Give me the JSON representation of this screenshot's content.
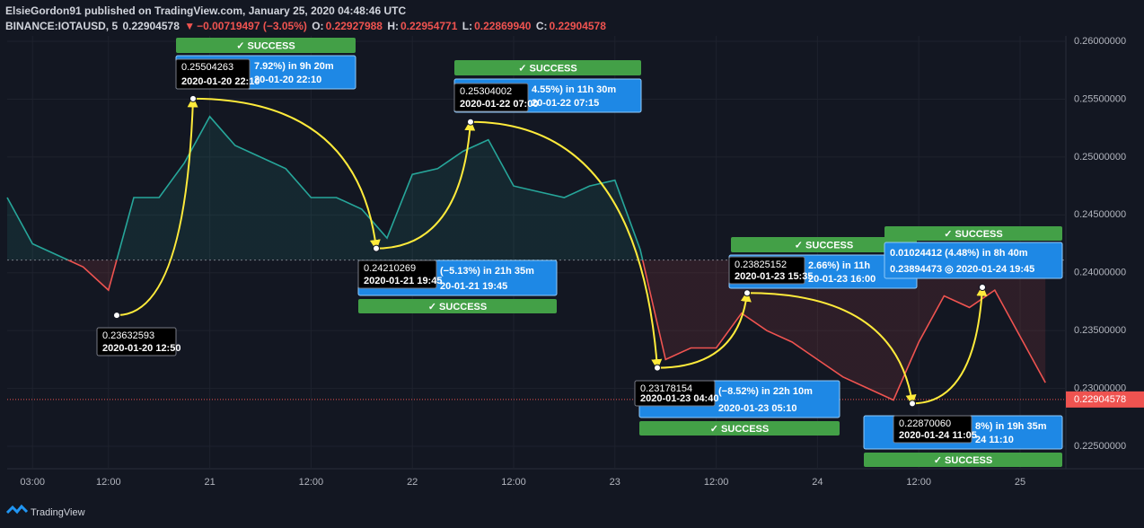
{
  "header": {
    "publisher": "ElsieGordon91 published on TradingView.com, January 25, 2020 04:48:46 UTC",
    "symbol": "BINANCE:IOTAUSD, 5",
    "price": "0.22904578",
    "arrow": "▼",
    "change": "−0.00719497 (−3.05%)",
    "o_label": "O:",
    "o": "0.22927988",
    "h_label": "H:",
    "h": "0.22954771",
    "l_label": "L:",
    "l": "0.22869940",
    "c_label": "C:",
    "c": "0.22904578"
  },
  "footer": {
    "brand": "TradingView"
  },
  "chart_data": {
    "type": "line",
    "up_color": "#26a69a",
    "down_color": "#ef5350",
    "baseline": 0.2411,
    "categories": [
      null,
      "03:00",
      null,
      null,
      "12:00",
      null,
      null,
      null,
      "21",
      null,
      null,
      null,
      "12:00",
      null,
      null,
      null,
      "22",
      null,
      null,
      null,
      "12:00",
      null,
      null,
      null,
      "23",
      null,
      null,
      null,
      "12:00",
      null,
      null,
      null,
      "24",
      null,
      null,
      null,
      "12:00",
      null,
      null,
      null,
      "25",
      null
    ],
    "values": [
      0.2465,
      0.2425,
      0.2415,
      0.2405,
      0.2385,
      0.2465,
      0.2465,
      0.2495,
      0.2535,
      0.251,
      0.25,
      0.249,
      0.2465,
      0.2465,
      0.2455,
      0.243,
      0.2485,
      0.249,
      0.2505,
      0.2515,
      0.2475,
      0.247,
      0.2465,
      0.2475,
      0.248,
      0.242,
      0.2325,
      0.2335,
      0.2335,
      0.2365,
      0.235,
      0.234,
      0.2325,
      0.231,
      0.23,
      0.229,
      0.234,
      0.238,
      0.237,
      0.2385,
      0.2345,
      0.2305
    ],
    "ylim": [
      0.22306,
      0.26047
    ],
    "yticks": [
      {
        "value": 0.225,
        "label": "0.22500000"
      },
      {
        "value": 0.23,
        "label": "0.23000000"
      },
      {
        "value": 0.235,
        "label": "0.23500000"
      },
      {
        "value": 0.24,
        "label": "0.24000000"
      },
      {
        "value": 0.245,
        "label": "0.24500000"
      },
      {
        "value": 0.25,
        "label": "0.25000000"
      },
      {
        "value": 0.255,
        "label": "0.25500000"
      },
      {
        "value": 0.26,
        "label": "0.26000000"
      }
    ],
    "last_price": 0.22904578,
    "annotations": [
      {
        "price": 0.23632593,
        "time": "2020-01-20 12:50"
      },
      {
        "price": 0.25504263,
        "time": "2020-01-20 22:10",
        "info": "7.92%) in 9h 20m",
        "info_time": "20-01-20  22:10",
        "status": "✓ SUCCESS"
      },
      {
        "price": 0.24210269,
        "time": "2020-01-21 19:45",
        "info": "(−5.13%) in 21h 35m",
        "info_time": "20-01-21  19:45",
        "status": "✓ SUCCESS"
      },
      {
        "price": 0.25304002,
        "time": "2020-01-22 07:00",
        "info": "4.55%) in 11h 30m",
        "info_time": "20-01-22  07:15",
        "status": "✓ SUCCESS"
      },
      {
        "price": 0.23178154,
        "time": "2020-01-23 04:40",
        "info": "(−8.52%) in 22h 10m",
        "info_time": "2020-01-23  05:10",
        "status": "✓ SUCCESS"
      },
      {
        "price": 0.23825152,
        "time": "2020-01-23 15:35",
        "info": "2.66%) in 11h",
        "info_time": "20-01-23  16:00",
        "status": "✓ SUCCESS"
      },
      {
        "price": {
          "value": 0.2287006,
          "label": "0.22870060"
        },
        "time": "2020-01-24 11:05",
        "info": "8%) in 19h 35m",
        "info_time": "24  11:10",
        "status": "✓ SUCCESS"
      },
      {
        "info": "0.01024412 (4.48%) in 8h 40m",
        "info_time": "0.23894473 ◎ 2020-01-24  19:45",
        "status": "✓ SUCCESS"
      }
    ]
  }
}
